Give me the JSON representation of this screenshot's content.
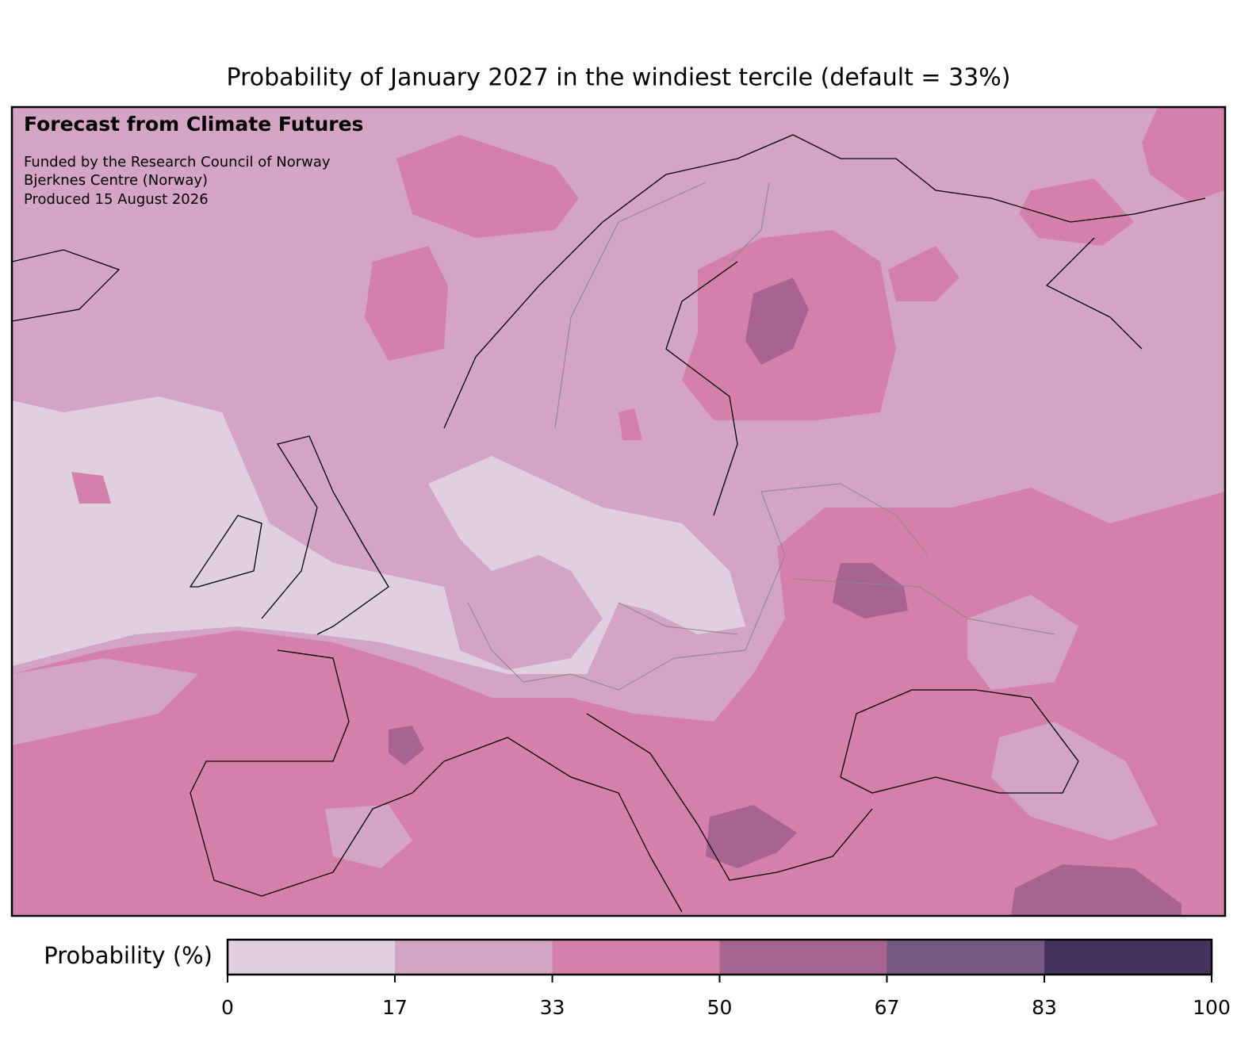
{
  "title": "Probability of January 2027 in the windiest tercile (default = 33%)",
  "annotations": {
    "heading": "Forecast from Climate Futures",
    "lines": [
      "Funded by the Research Council of Norway",
      "Bjerknes Centre (Norway)",
      "Produced 15 August 2026"
    ]
  },
  "colorbar": {
    "label": "Probability (%)",
    "lim": [
      0,
      100
    ],
    "ticks": [
      0,
      17,
      33,
      50,
      67,
      83,
      100
    ],
    "colors": [
      "#dfcfe0",
      "#d4a4c4",
      "#d580aa",
      "#a86491",
      "#755883",
      "#46325e"
    ]
  }
}
